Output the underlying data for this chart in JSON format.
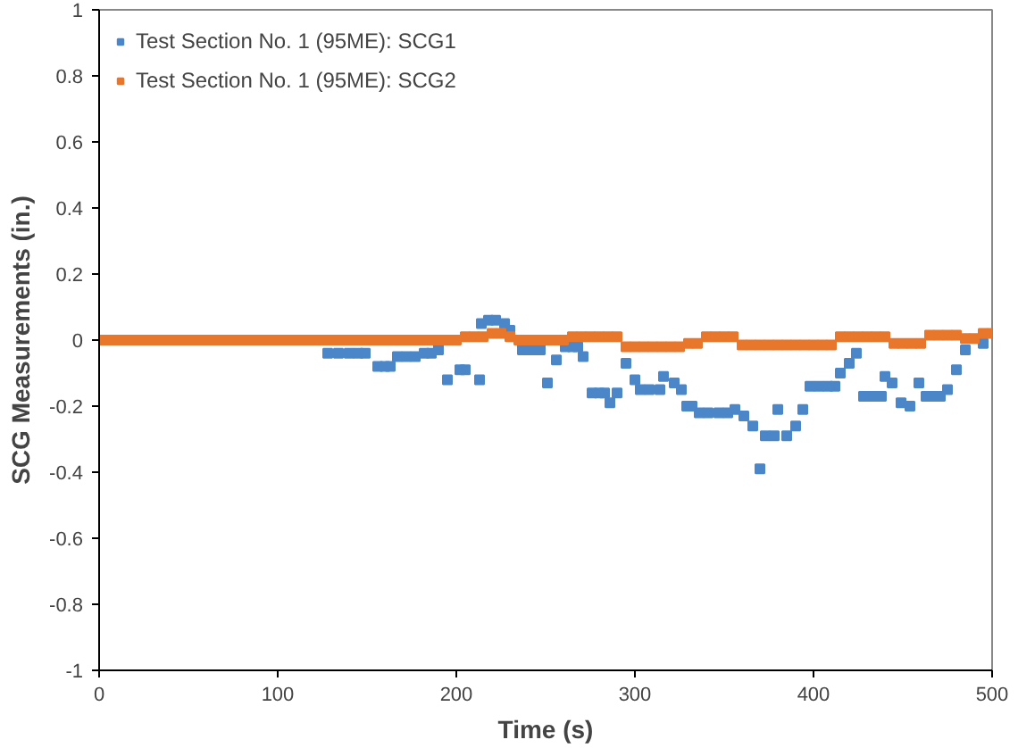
{
  "chart_data": {
    "type": "scatter",
    "xlabel": "Time (s)",
    "ylabel": "SCG Measurements (in.)",
    "xlim": [
      0,
      500
    ],
    "xticks": [
      0,
      100,
      200,
      300,
      400,
      500
    ],
    "ylim": [
      -1,
      1
    ],
    "yticks": [
      -1,
      -0.8,
      -0.6,
      -0.4,
      -0.2,
      0,
      0.2,
      0.4,
      0.6,
      0.8,
      1
    ],
    "grid": false,
    "legend": "top left",
    "marker": "square",
    "series": [
      {
        "name": "Test Section No. 1 (95ME): SCG1",
        "color": "#4a86c8",
        "x": [
          128,
          134,
          140,
          145,
          149,
          156,
          160,
          163,
          167,
          172,
          177,
          182,
          186,
          190,
          195,
          202,
          205,
          213,
          214,
          218,
          222,
          227,
          230,
          237,
          242,
          247,
          251,
          256,
          261,
          265,
          268,
          271,
          276,
          280,
          283,
          286,
          290,
          295,
          300,
          303,
          308,
          314,
          316,
          322,
          326,
          329,
          332,
          336,
          341,
          347,
          352,
          356,
          361,
          366,
          370,
          373,
          378,
          380,
          385,
          390,
          394,
          398,
          403,
          408,
          412,
          415,
          420,
          424,
          428,
          433,
          438,
          440,
          444,
          449,
          454,
          459,
          463,
          467,
          471,
          475,
          480,
          485,
          495
        ],
        "values": [
          -0.04,
          -0.04,
          -0.04,
          -0.04,
          -0.04,
          -0.08,
          -0.08,
          -0.08,
          -0.05,
          -0.05,
          -0.05,
          -0.04,
          -0.04,
          -0.03,
          -0.12,
          -0.09,
          -0.09,
          -0.12,
          0.05,
          0.06,
          0.06,
          0.05,
          0.03,
          -0.03,
          -0.03,
          -0.03,
          -0.13,
          -0.06,
          -0.02,
          -0.02,
          -0.02,
          -0.05,
          -0.16,
          -0.16,
          -0.16,
          -0.19,
          -0.16,
          -0.07,
          -0.12,
          -0.15,
          -0.15,
          -0.15,
          -0.11,
          -0.13,
          -0.15,
          -0.2,
          -0.2,
          -0.22,
          -0.22,
          -0.22,
          -0.22,
          -0.21,
          -0.23,
          -0.26,
          -0.39,
          -0.29,
          -0.29,
          -0.21,
          -0.29,
          -0.26,
          -0.21,
          -0.14,
          -0.14,
          -0.14,
          -0.14,
          -0.1,
          -0.07,
          -0.04,
          -0.17,
          -0.17,
          -0.17,
          -0.11,
          -0.13,
          -0.19,
          -0.2,
          -0.13,
          -0.17,
          -0.17,
          -0.17,
          -0.15,
          -0.09,
          -0.03,
          -0.01
        ]
      },
      {
        "name": "Test Section No. 1 (95ME): SCG2",
        "color": "#e8762b",
        "x": [
          0,
          5,
          10,
          15,
          20,
          25,
          30,
          35,
          40,
          45,
          50,
          55,
          60,
          65,
          70,
          75,
          80,
          85,
          90,
          95,
          100,
          105,
          110,
          115,
          120,
          125,
          130,
          135,
          140,
          145,
          150,
          155,
          160,
          165,
          170,
          175,
          180,
          185,
          190,
          195,
          200,
          205,
          210,
          215,
          220,
          225,
          230,
          235,
          240,
          245,
          250,
          255,
          260,
          265,
          270,
          275,
          280,
          285,
          290,
          295,
          300,
          305,
          310,
          315,
          320,
          325,
          330,
          335,
          340,
          345,
          350,
          355,
          360,
          365,
          370,
          375,
          380,
          385,
          390,
          395,
          400,
          405,
          410,
          415,
          420,
          425,
          430,
          435,
          440,
          445,
          450,
          455,
          460,
          465,
          470,
          475,
          480,
          485,
          490,
          495,
          500
        ],
        "values": [
          0,
          0,
          0,
          0,
          0,
          0,
          0,
          0,
          0,
          0,
          0,
          0,
          0,
          0,
          0,
          0,
          0,
          0,
          0,
          0,
          0,
          0,
          0,
          0,
          0,
          0,
          0,
          0,
          0,
          0,
          0,
          0,
          0,
          0,
          0,
          0,
          0,
          0,
          0,
          0,
          0,
          0.01,
          0.01,
          0.01,
          0.02,
          0.02,
          0.01,
          0,
          0,
          0,
          0,
          0,
          0,
          0.01,
          0.01,
          0.01,
          0.01,
          0.01,
          0.01,
          -0.02,
          -0.02,
          -0.02,
          -0.02,
          -0.02,
          -0.02,
          -0.02,
          -0.01,
          -0.01,
          0.01,
          0.01,
          0.01,
          0.01,
          -0.015,
          -0.015,
          -0.015,
          -0.015,
          -0.015,
          -0.015,
          -0.015,
          -0.015,
          -0.015,
          -0.015,
          -0.015,
          0.01,
          0.01,
          0.01,
          0.01,
          0.01,
          0.01,
          -0.01,
          -0.01,
          -0.01,
          -0.01,
          0.015,
          0.015,
          0.015,
          0.015,
          0.005,
          0.005,
          0.02,
          0.02
        ]
      }
    ]
  }
}
